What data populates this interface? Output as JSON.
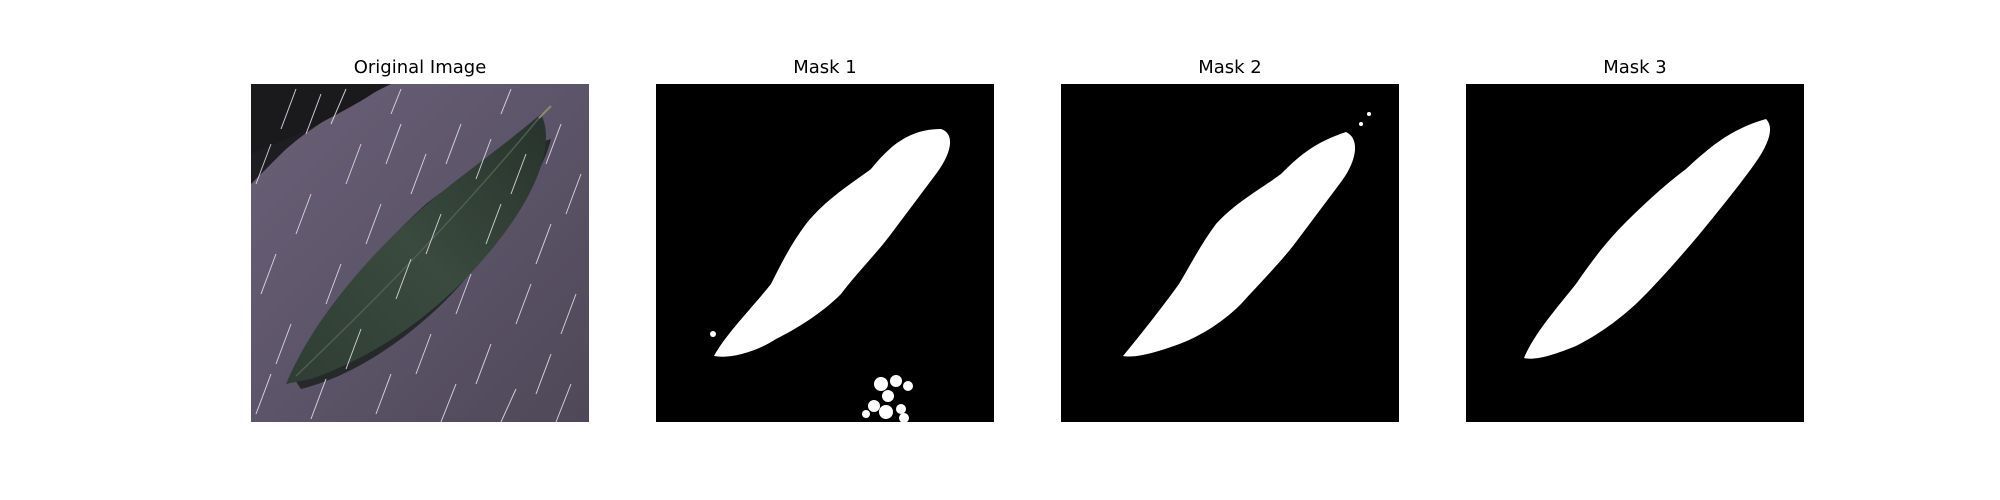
{
  "figure": {
    "panels": [
      {
        "title": "Original Image"
      },
      {
        "title": "Mask 1"
      },
      {
        "title": "Mask 2"
      },
      {
        "title": "Mask 3"
      }
    ]
  },
  "colors": {
    "background": "#ffffff",
    "mask_background": "#000000",
    "mask_foreground": "#ffffff",
    "ground": "#5c5468",
    "leaf": "#2b3a30",
    "rain_streaks": "#e6e6ee"
  }
}
